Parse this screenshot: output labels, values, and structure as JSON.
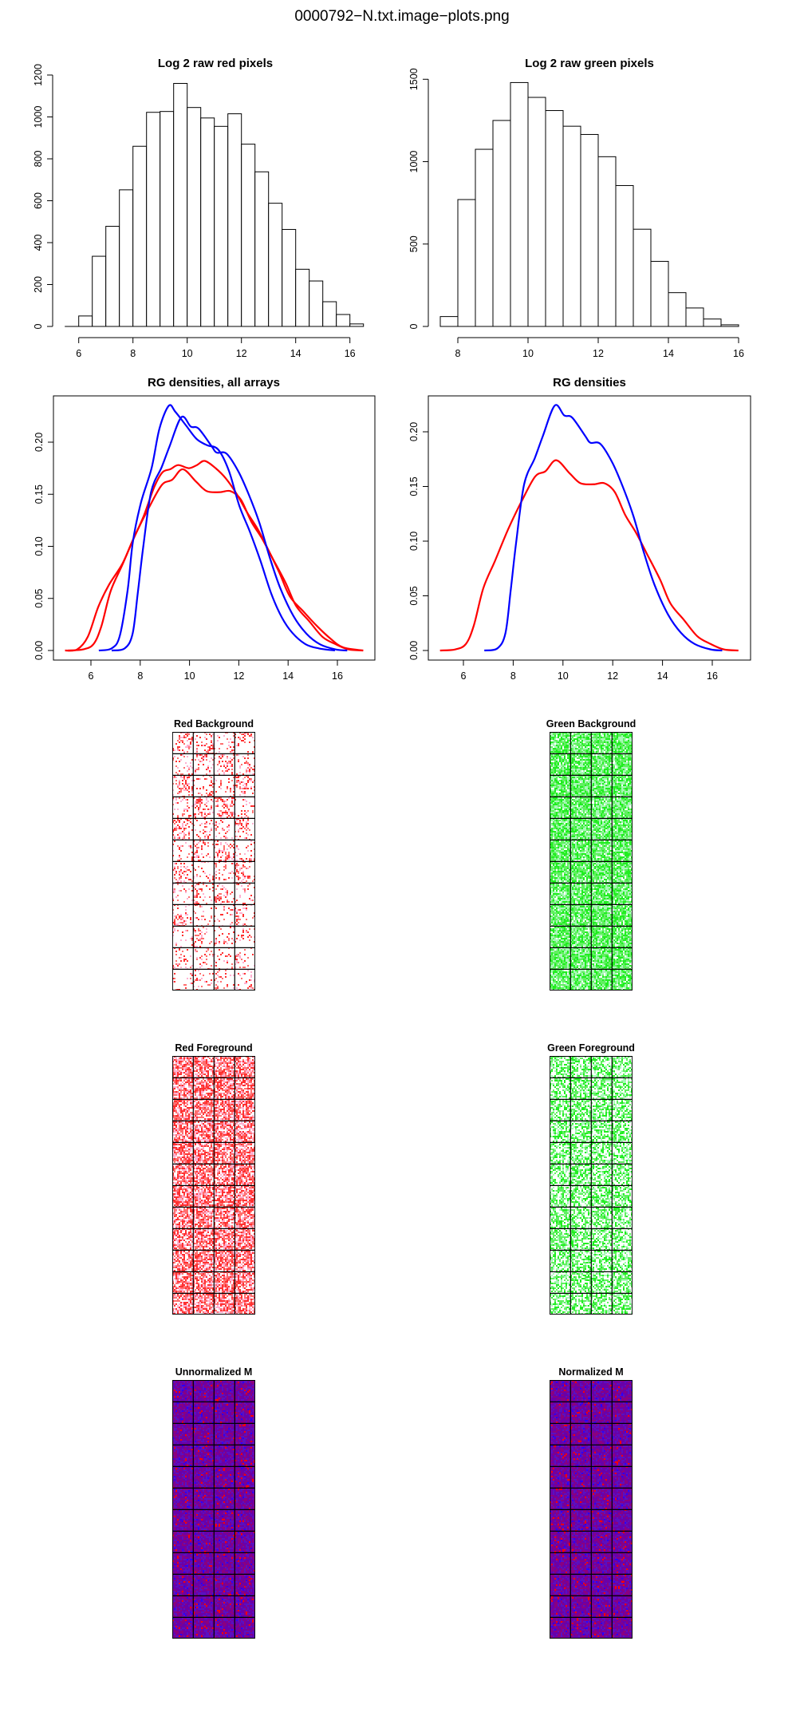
{
  "page_title": "0000792−N.txt.image−plots.png",
  "chart_data": [
    {
      "id": "hist-red",
      "type": "bar",
      "title": "Log 2 raw red pixels",
      "bin_start": 5.5,
      "bin_width": 0.5,
      "counts": [
        0,
        50,
        335,
        478,
        652,
        860,
        1022,
        1026,
        1160,
        1045,
        995,
        955,
        1015,
        870,
        738,
        588,
        463,
        273,
        217,
        118,
        57,
        12
      ],
      "xticks": [
        6,
        8,
        10,
        12,
        14,
        16
      ],
      "yticks": [
        0,
        200,
        400,
        600,
        800,
        1000,
        1200
      ],
      "ylim": [
        0,
        1200
      ]
    },
    {
      "id": "hist-green",
      "type": "bar",
      "title": "Log 2 raw green pixels",
      "bin_start": 7.5,
      "bin_width": 0.5,
      "counts": [
        60,
        770,
        1075,
        1250,
        1480,
        1390,
        1310,
        1215,
        1165,
        1030,
        855,
        590,
        395,
        205,
        112,
        45,
        10
      ],
      "xticks": [
        8,
        10,
        12,
        14,
        16
      ],
      "yticks": [
        0,
        500,
        1000,
        1500
      ],
      "ylim": [
        0,
        1500
      ]
    },
    {
      "id": "dens-all",
      "type": "line",
      "title": "RG densities, all arrays",
      "xticks": [
        6,
        8,
        10,
        12,
        14,
        16
      ],
      "yticks": [
        "0.00",
        "0.05",
        "0.10",
        "0.15",
        "0.20"
      ],
      "series": [
        {
          "color": "#ff0000",
          "points": [
            [
              4.95,
              0
            ],
            [
              5.44,
              0.001
            ],
            [
              5.87,
              0.013
            ],
            [
              6.3,
              0.042
            ],
            [
              6.73,
              0.063
            ],
            [
              7.27,
              0.083
            ],
            [
              7.7,
              0.106
            ],
            [
              8.14,
              0.129
            ],
            [
              8.57,
              0.157
            ],
            [
              8.9,
              0.171
            ],
            [
              9.22,
              0.174
            ],
            [
              9.54,
              0.178
            ],
            [
              9.97,
              0.175
            ],
            [
              10.3,
              0.178
            ],
            [
              10.62,
              0.182
            ],
            [
              11.06,
              0.175
            ],
            [
              11.48,
              0.165
            ],
            [
              11.92,
              0.15
            ],
            [
              12.35,
              0.132
            ],
            [
              12.78,
              0.116
            ],
            [
              13.21,
              0.096
            ],
            [
              13.64,
              0.075
            ],
            [
              14.07,
              0.052
            ],
            [
              14.6,
              0.038
            ],
            [
              15.15,
              0.024
            ],
            [
              15.69,
              0.012
            ],
            [
              16.23,
              0.003
            ],
            [
              17.04,
              0
            ]
          ]
        },
        {
          "color": "#ff0000",
          "points": [
            [
              5.06,
              0
            ],
            [
              5.67,
              0.001
            ],
            [
              6.1,
              0.006
            ],
            [
              6.42,
              0.023
            ],
            [
              6.8,
              0.057
            ],
            [
              7.27,
              0.082
            ],
            [
              7.8,
              0.111
            ],
            [
              8.35,
              0.137
            ],
            [
              8.88,
              0.159
            ],
            [
              9.3,
              0.164
            ],
            [
              9.73,
              0.174
            ],
            [
              10.27,
              0.162
            ],
            [
              10.7,
              0.153
            ],
            [
              11.23,
              0.152
            ],
            [
              11.66,
              0.153
            ],
            [
              12.08,
              0.145
            ],
            [
              12.5,
              0.124
            ],
            [
              12.93,
              0.108
            ],
            [
              13.36,
              0.089
            ],
            [
              13.9,
              0.065
            ],
            [
              14.32,
              0.043
            ],
            [
              14.86,
              0.028
            ],
            [
              15.4,
              0.013
            ],
            [
              15.93,
              0.006
            ],
            [
              16.46,
              0.001
            ],
            [
              17.05,
              0
            ]
          ]
        },
        {
          "color": "#0000ff",
          "points": [
            [
              6.32,
              0
            ],
            [
              6.84,
              0.002
            ],
            [
              7.17,
              0.014
            ],
            [
              7.49,
              0.058
            ],
            [
              7.7,
              0.104
            ],
            [
              8.03,
              0.142
            ],
            [
              8.46,
              0.175
            ],
            [
              8.78,
              0.213
            ],
            [
              9.16,
              0.235
            ],
            [
              9.43,
              0.229
            ],
            [
              9.86,
              0.216
            ],
            [
              10.29,
              0.203
            ],
            [
              10.72,
              0.197
            ],
            [
              11.16,
              0.193
            ],
            [
              11.59,
              0.173
            ],
            [
              12.02,
              0.139
            ],
            [
              12.45,
              0.114
            ],
            [
              12.88,
              0.086
            ],
            [
              13.31,
              0.055
            ],
            [
              13.74,
              0.032
            ],
            [
              14.17,
              0.017
            ],
            [
              14.71,
              0.006
            ],
            [
              15.25,
              0.002
            ],
            [
              15.9,
              0
            ]
          ]
        },
        {
          "color": "#0000ff",
          "points": [
            [
              6.84,
              0
            ],
            [
              7.37,
              0.002
            ],
            [
              7.69,
              0.016
            ],
            [
              7.9,
              0.055
            ],
            [
              8.12,
              0.099
            ],
            [
              8.44,
              0.152
            ],
            [
              8.87,
              0.176
            ],
            [
              9.19,
              0.196
            ],
            [
              9.67,
              0.224
            ],
            [
              10.05,
              0.215
            ],
            [
              10.37,
              0.213
            ],
            [
              10.9,
              0.196
            ],
            [
              11.1,
              0.19
            ],
            [
              11.5,
              0.189
            ],
            [
              11.98,
              0.172
            ],
            [
              12.4,
              0.15
            ],
            [
              12.83,
              0.123
            ],
            [
              13.26,
              0.089
            ],
            [
              13.68,
              0.06
            ],
            [
              14.22,
              0.033
            ],
            [
              14.75,
              0.016
            ],
            [
              15.29,
              0.006
            ],
            [
              15.93,
              0.001
            ],
            [
              16.4,
              0
            ]
          ]
        }
      ]
    },
    {
      "id": "dens-single",
      "type": "line",
      "title": "RG densities",
      "xticks": [
        6,
        8,
        10,
        12,
        14,
        16
      ],
      "yticks": [
        "0.00",
        "0.05",
        "0.10",
        "0.15",
        "0.20"
      ],
      "series": [
        {
          "color": "#ff0000",
          "points": [
            [
              5.06,
              0
            ],
            [
              5.67,
              0.001
            ],
            [
              6.1,
              0.006
            ],
            [
              6.42,
              0.023
            ],
            [
              6.8,
              0.057
            ],
            [
              7.27,
              0.082
            ],
            [
              7.8,
              0.111
            ],
            [
              8.35,
              0.137
            ],
            [
              8.88,
              0.159
            ],
            [
              9.3,
              0.164
            ],
            [
              9.73,
              0.174
            ],
            [
              10.27,
              0.162
            ],
            [
              10.7,
              0.153
            ],
            [
              11.23,
              0.152
            ],
            [
              11.66,
              0.153
            ],
            [
              12.08,
              0.145
            ],
            [
              12.5,
              0.124
            ],
            [
              12.93,
              0.108
            ],
            [
              13.36,
              0.089
            ],
            [
              13.9,
              0.065
            ],
            [
              14.32,
              0.043
            ],
            [
              14.86,
              0.028
            ],
            [
              15.4,
              0.013
            ],
            [
              15.93,
              0.006
            ],
            [
              16.46,
              0.001
            ],
            [
              17.05,
              0
            ]
          ]
        },
        {
          "color": "#0000ff",
          "points": [
            [
              6.84,
              0
            ],
            [
              7.37,
              0.002
            ],
            [
              7.69,
              0.016
            ],
            [
              7.9,
              0.055
            ],
            [
              8.12,
              0.099
            ],
            [
              8.44,
              0.152
            ],
            [
              8.87,
              0.176
            ],
            [
              9.19,
              0.196
            ],
            [
              9.67,
              0.224
            ],
            [
              10.05,
              0.215
            ],
            [
              10.37,
              0.213
            ],
            [
              10.9,
              0.196
            ],
            [
              11.1,
              0.19
            ],
            [
              11.5,
              0.189
            ],
            [
              11.98,
              0.172
            ],
            [
              12.4,
              0.15
            ],
            [
              12.83,
              0.123
            ],
            [
              13.26,
              0.089
            ],
            [
              13.68,
              0.06
            ],
            [
              14.22,
              0.033
            ],
            [
              14.75,
              0.016
            ],
            [
              15.29,
              0.006
            ],
            [
              15.93,
              0.001
            ],
            [
              16.4,
              0
            ]
          ]
        }
      ]
    },
    {
      "id": "img-red-bg",
      "type": "heatmap",
      "title": "Red Background",
      "grid_rows": 12,
      "grid_cols": 4,
      "palette": "white-red",
      "density": "sparse"
    },
    {
      "id": "img-green-bg",
      "type": "heatmap",
      "title": "Green Background",
      "grid_rows": 12,
      "grid_cols": 4,
      "palette": "white-green",
      "density": "dense"
    },
    {
      "id": "img-red-fg",
      "type": "heatmap",
      "title": "Red Foreground",
      "grid_rows": 12,
      "grid_cols": 4,
      "palette": "white-red",
      "density": "medium"
    },
    {
      "id": "img-green-fg",
      "type": "heatmap",
      "title": "Green Foreground",
      "grid_rows": 12,
      "grid_cols": 4,
      "palette": "white-green",
      "density": "medium"
    },
    {
      "id": "img-m-unnorm",
      "type": "heatmap",
      "title": "Unnormalized M",
      "grid_rows": 12,
      "grid_cols": 4,
      "palette": "blue-purple-red",
      "density": "dense"
    },
    {
      "id": "img-m-norm",
      "type": "heatmap",
      "title": "Normalized M",
      "grid_rows": 12,
      "grid_cols": 4,
      "palette": "blue-purple-red",
      "density": "dense"
    }
  ]
}
